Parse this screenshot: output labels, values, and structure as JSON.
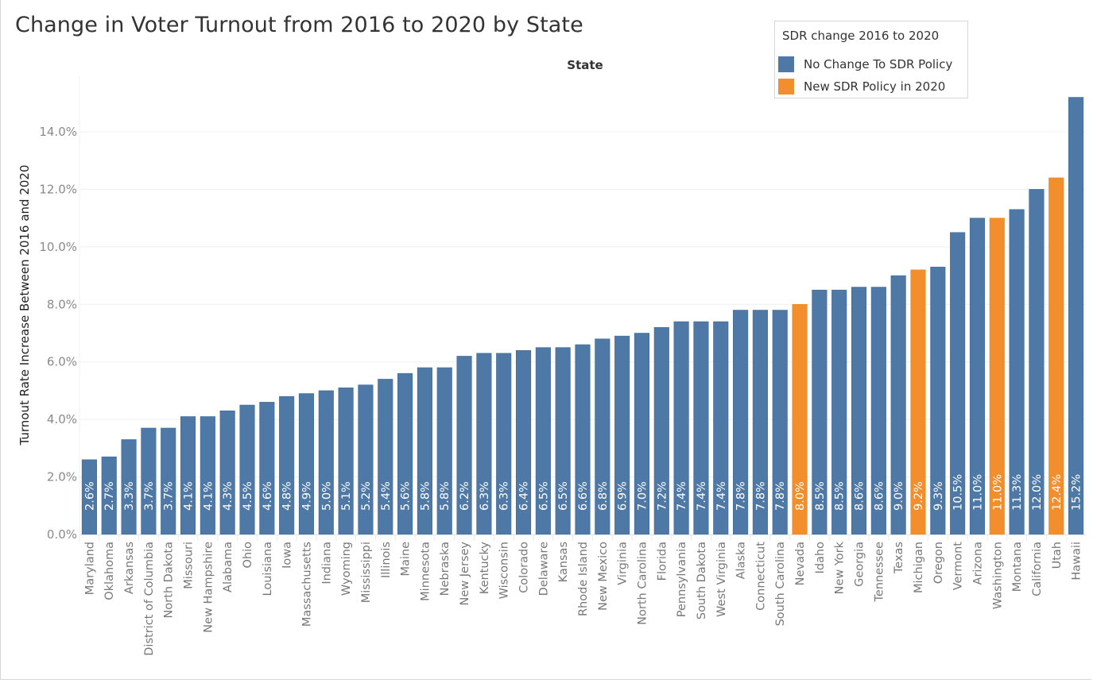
{
  "chart_data": {
    "type": "bar",
    "title": "Change in Voter Turnout from 2016 to 2020 by State",
    "column_header": "State",
    "xlabel": "State",
    "ylabel": "Turnout Rate Increase Between 2016 and 2020",
    "ylim": [
      0,
      15.6
    ],
    "yticks": [
      0,
      2,
      4,
      6,
      8,
      10,
      12,
      14
    ],
    "ytick_labels": [
      "0.0%",
      "2.0%",
      "4.0%",
      "6.0%",
      "8.0%",
      "10.0%",
      "12.0%",
      "14.0%"
    ],
    "grid": true,
    "legend": {
      "title": "SDR change 2016 to 2020",
      "placement": "top-right",
      "entries": [
        {
          "key": "no_change",
          "label": "No Change To SDR Policy",
          "color": "#4e79a7"
        },
        {
          "key": "new_policy",
          "label": "New SDR Policy in 2020",
          "color": "#f28e2b"
        }
      ]
    },
    "categories": [
      "Maryland",
      "Oklahoma",
      "Arkansas",
      "District of Columbia",
      "North Dakota",
      "Missouri",
      "New Hampshire",
      "Alabama",
      "Ohio",
      "Louisiana",
      "Iowa",
      "Massachusetts",
      "Indiana",
      "Wyoming",
      "Mississippi",
      "Illinois",
      "Maine",
      "Minnesota",
      "Nebraska",
      "New Jersey",
      "Kentucky",
      "Wisconsin",
      "Colorado",
      "Delaware",
      "Kansas",
      "Rhode Island",
      "New Mexico",
      "Virginia",
      "North Carolina",
      "Florida",
      "Pennsylvania",
      "South Dakota",
      "West Virginia",
      "Alaska",
      "Connecticut",
      "South Carolina",
      "Nevada",
      "Idaho",
      "New York",
      "Georgia",
      "Tennessee",
      "Texas",
      "Michigan",
      "Oregon",
      "Vermont",
      "Arizona",
      "Washington",
      "Montana",
      "California",
      "Utah",
      "Hawaii"
    ],
    "values": [
      2.6,
      2.7,
      3.3,
      3.7,
      3.7,
      4.1,
      4.1,
      4.3,
      4.5,
      4.6,
      4.8,
      4.9,
      5.0,
      5.1,
      5.2,
      5.4,
      5.6,
      5.8,
      5.8,
      6.2,
      6.3,
      6.3,
      6.4,
      6.5,
      6.5,
      6.6,
      6.8,
      6.9,
      7.0,
      7.2,
      7.4,
      7.4,
      7.4,
      7.8,
      7.8,
      7.8,
      8.0,
      8.5,
      8.5,
      8.6,
      8.6,
      9.0,
      9.2,
      9.3,
      10.5,
      11.0,
      11.0,
      11.3,
      12.0,
      12.4,
      15.2
    ],
    "value_labels": [
      "2.6%",
      "2.7%",
      "3.3%",
      "3.7%",
      "3.7%",
      "4.1%",
      "4.1%",
      "4.3%",
      "4.5%",
      "4.6%",
      "4.8%",
      "4.9%",
      "5.0%",
      "5.1%",
      "5.2%",
      "5.4%",
      "5.6%",
      "5.8%",
      "5.8%",
      "6.2%",
      "6.3%",
      "6.3%",
      "6.4%",
      "6.5%",
      "6.5%",
      "6.6%",
      "6.8%",
      "6.9%",
      "7.0%",
      "7.2%",
      "7.4%",
      "7.4%",
      "7.4%",
      "7.8%",
      "7.8%",
      "7.8%",
      "8.0%",
      "8.5%",
      "8.5%",
      "8.6%",
      "8.6%",
      "9.0%",
      "9.2%",
      "9.3%",
      "10.5%",
      "11.0%",
      "11.0%",
      "11.3%",
      "12.0%",
      "12.4%",
      "15.2%"
    ],
    "groups": [
      "no_change",
      "no_change",
      "no_change",
      "no_change",
      "no_change",
      "no_change",
      "no_change",
      "no_change",
      "no_change",
      "no_change",
      "no_change",
      "no_change",
      "no_change",
      "no_change",
      "no_change",
      "no_change",
      "no_change",
      "no_change",
      "no_change",
      "no_change",
      "no_change",
      "no_change",
      "no_change",
      "no_change",
      "no_change",
      "no_change",
      "no_change",
      "no_change",
      "no_change",
      "no_change",
      "no_change",
      "no_change",
      "no_change",
      "no_change",
      "no_change",
      "no_change",
      "new_policy",
      "no_change",
      "no_change",
      "no_change",
      "no_change",
      "no_change",
      "new_policy",
      "no_change",
      "no_change",
      "no_change",
      "new_policy",
      "no_change",
      "no_change",
      "new_policy",
      "no_change"
    ]
  }
}
